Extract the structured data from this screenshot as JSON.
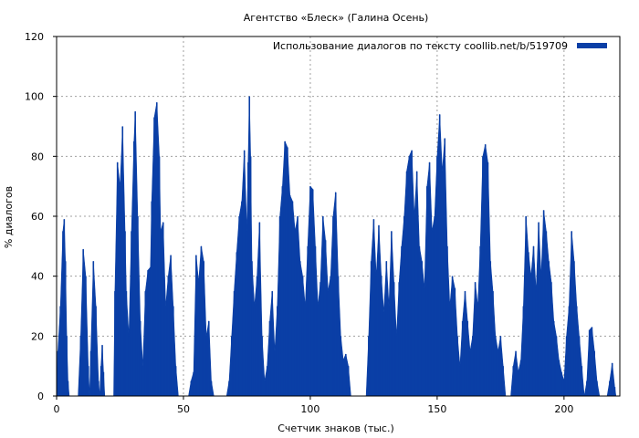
{
  "chart_data": {
    "type": "area",
    "title": "Агентство «Блеск» (Галина Осень)",
    "xlabel": "Счетчик знаков (тыс.)",
    "ylabel": "% диалогов",
    "xlim": [
      0,
      222
    ],
    "ylim": [
      0,
      120
    ],
    "xticks": [
      0,
      50,
      100,
      150,
      200
    ],
    "yticks": [
      0,
      20,
      40,
      60,
      80,
      100,
      120
    ],
    "grid": true,
    "legend_position": "top-right",
    "series": [
      {
        "name": "Использование диалогов по тексту  coollib.net/b/519709",
        "color": "#0a3fa6",
        "points": [
          [
            0,
            0
          ],
          [
            0.5,
            15
          ],
          [
            1.5,
            30
          ],
          [
            2.5,
            55
          ],
          [
            3.0,
            59
          ],
          [
            3.5,
            45
          ],
          [
            4.0,
            20
          ],
          [
            4.5,
            5
          ],
          [
            5.0,
            0
          ],
          [
            8.5,
            0
          ],
          [
            9.5,
            20
          ],
          [
            10.5,
            49
          ],
          [
            11.5,
            40
          ],
          [
            12.5,
            10
          ],
          [
            13.0,
            0
          ],
          [
            13.5,
            15
          ],
          [
            14.5,
            45
          ],
          [
            15.5,
            30
          ],
          [
            16.5,
            5
          ],
          [
            17.0,
            0
          ],
          [
            17.5,
            10
          ],
          [
            18.0,
            17
          ],
          [
            18.5,
            8
          ],
          [
            19.0,
            0
          ],
          [
            22.5,
            0
          ],
          [
            23.0,
            35
          ],
          [
            24.0,
            78
          ],
          [
            25.0,
            70
          ],
          [
            26.0,
            90
          ],
          [
            27.0,
            55
          ],
          [
            27.5,
            35
          ],
          [
            28.5,
            20
          ],
          [
            29.5,
            55
          ],
          [
            30.5,
            85
          ],
          [
            31.0,
            95
          ],
          [
            32.0,
            60
          ],
          [
            33.0,
            25
          ],
          [
            34.0,
            10
          ],
          [
            35.0,
            35
          ],
          [
            36.0,
            42
          ],
          [
            37.0,
            43
          ],
          [
            37.5,
            65
          ],
          [
            38.5,
            93
          ],
          [
            39.5,
            98
          ],
          [
            40.5,
            80
          ],
          [
            41.0,
            55
          ],
          [
            42.0,
            58
          ],
          [
            43.0,
            30
          ],
          [
            44.0,
            40
          ],
          [
            45.0,
            47
          ],
          [
            46.0,
            30
          ],
          [
            47.0,
            10
          ],
          [
            48.0,
            0
          ],
          [
            52.0,
            0
          ],
          [
            53.0,
            5
          ],
          [
            54.0,
            8
          ],
          [
            55.0,
            47
          ],
          [
            56.0,
            38
          ],
          [
            57.0,
            50
          ],
          [
            58.0,
            45
          ],
          [
            59.0,
            20
          ],
          [
            60.0,
            25
          ],
          [
            61.0,
            5
          ],
          [
            62.0,
            0
          ],
          [
            67.0,
            0
          ],
          [
            68.0,
            5
          ],
          [
            69.0,
            20
          ],
          [
            70.0,
            35
          ],
          [
            71.0,
            48
          ],
          [
            72.0,
            60
          ],
          [
            73.0,
            65
          ],
          [
            74.0,
            82
          ],
          [
            75.0,
            55
          ],
          [
            75.5,
            78
          ],
          [
            76.0,
            100
          ],
          [
            76.5,
            80
          ],
          [
            77.0,
            45
          ],
          [
            78.0,
            30
          ],
          [
            79.0,
            40
          ],
          [
            80.0,
            58
          ],
          [
            81.0,
            20
          ],
          [
            82.0,
            5
          ],
          [
            83.0,
            10
          ],
          [
            84.0,
            25
          ],
          [
            85.0,
            35
          ],
          [
            86.0,
            15
          ],
          [
            87.0,
            30
          ],
          [
            88.0,
            60
          ],
          [
            89.0,
            70
          ],
          [
            90.0,
            85
          ],
          [
            91.0,
            83
          ],
          [
            92.0,
            67
          ],
          [
            93.0,
            65
          ],
          [
            94.0,
            55
          ],
          [
            95.0,
            60
          ],
          [
            96.0,
            45
          ],
          [
            97.0,
            40
          ],
          [
            98.0,
            30
          ],
          [
            99.0,
            50
          ],
          [
            100.0,
            70
          ],
          [
            101.0,
            69
          ],
          [
            102.0,
            50
          ],
          [
            103.0,
            30
          ],
          [
            104.0,
            38
          ],
          [
            105.0,
            60
          ],
          [
            106.0,
            52
          ],
          [
            107.0,
            35
          ],
          [
            108.0,
            40
          ],
          [
            109.0,
            60
          ],
          [
            110.0,
            68
          ],
          [
            111.0,
            40
          ],
          [
            112.0,
            20
          ],
          [
            113.0,
            12
          ],
          [
            114.0,
            14
          ],
          [
            115.0,
            10
          ],
          [
            116.0,
            0
          ],
          [
            122.0,
            0
          ],
          [
            123.0,
            20
          ],
          [
            124.0,
            45
          ],
          [
            125.0,
            59
          ],
          [
            126.0,
            40
          ],
          [
            127.0,
            57
          ],
          [
            128.0,
            40
          ],
          [
            129.0,
            28
          ],
          [
            130.0,
            45
          ],
          [
            131.0,
            30
          ],
          [
            132.0,
            55
          ],
          [
            133.0,
            38
          ],
          [
            134.0,
            20
          ],
          [
            135.0,
            38
          ],
          [
            136.0,
            50
          ],
          [
            137.0,
            60
          ],
          [
            138.0,
            75
          ],
          [
            139.0,
            80
          ],
          [
            140.0,
            82
          ],
          [
            141.0,
            60
          ],
          [
            142.0,
            75
          ],
          [
            143.0,
            50
          ],
          [
            144.0,
            45
          ],
          [
            145.0,
            36
          ],
          [
            146.0,
            70
          ],
          [
            147.0,
            78
          ],
          [
            148.0,
            55
          ],
          [
            149.0,
            60
          ],
          [
            150.0,
            80
          ],
          [
            151.0,
            94
          ],
          [
            152.0,
            75
          ],
          [
            153.0,
            86
          ],
          [
            154.0,
            50
          ],
          [
            155.0,
            30
          ],
          [
            156.0,
            40
          ],
          [
            157.0,
            36
          ],
          [
            158.0,
            20
          ],
          [
            159.0,
            10
          ],
          [
            160.0,
            25
          ],
          [
            161.0,
            35
          ],
          [
            162.0,
            25
          ],
          [
            163.0,
            15
          ],
          [
            164.0,
            20
          ],
          [
            165.0,
            38
          ],
          [
            166.0,
            30
          ],
          [
            167.0,
            50
          ],
          [
            168.0,
            80
          ],
          [
            169.0,
            84
          ],
          [
            170.0,
            78
          ],
          [
            171.0,
            45
          ],
          [
            172.0,
            35
          ],
          [
            173.0,
            20
          ],
          [
            174.0,
            15
          ],
          [
            175.0,
            20
          ],
          [
            176.0,
            10
          ],
          [
            177.0,
            0
          ],
          [
            179.0,
            0
          ],
          [
            180.0,
            10
          ],
          [
            181.0,
            15
          ],
          [
            182.0,
            8
          ],
          [
            183.0,
            12
          ],
          [
            184.0,
            30
          ],
          [
            185.0,
            60
          ],
          [
            186.0,
            48
          ],
          [
            187.0,
            40
          ],
          [
            188.0,
            50
          ],
          [
            189.0,
            35
          ],
          [
            190.0,
            58
          ],
          [
            191.0,
            40
          ],
          [
            192.0,
            62
          ],
          [
            193.0,
            55
          ],
          [
            194.0,
            45
          ],
          [
            195.0,
            38
          ],
          [
            196.0,
            25
          ],
          [
            197.0,
            20
          ],
          [
            198.0,
            12
          ],
          [
            199.0,
            8
          ],
          [
            200.0,
            5
          ],
          [
            201.0,
            20
          ],
          [
            202.0,
            30
          ],
          [
            203.0,
            55
          ],
          [
            204.0,
            45
          ],
          [
            205.0,
            30
          ],
          [
            206.0,
            20
          ],
          [
            207.0,
            10
          ],
          [
            208.0,
            0
          ],
          [
            209.0,
            5
          ],
          [
            210.0,
            22
          ],
          [
            211.0,
            23
          ],
          [
            212.0,
            15
          ],
          [
            213.0,
            5
          ],
          [
            214.0,
            0
          ],
          [
            217.0,
            0
          ],
          [
            218.0,
            5
          ],
          [
            219.0,
            11
          ],
          [
            220.0,
            3
          ],
          [
            220.5,
            0
          ]
        ]
      }
    ]
  }
}
